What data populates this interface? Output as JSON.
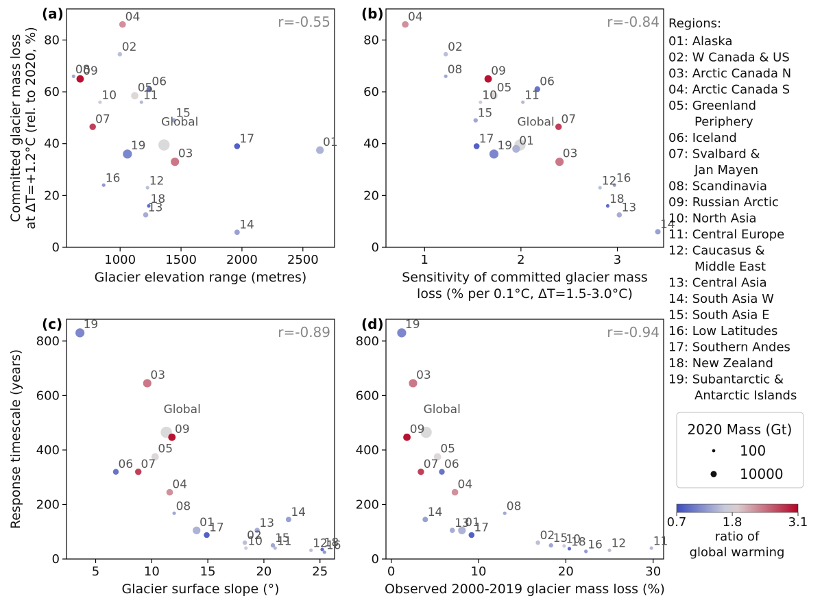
{
  "chart_data": [
    {
      "type": "scatter",
      "panel": "(a)",
      "corr": "r=-0.55",
      "xlabel": [
        "Glacier elevation range (metres)"
      ],
      "ylabel": [
        "Committed glacier mass loss",
        "at ΔT=+1.2°C (rel. to 2020, %)"
      ],
      "xlim": [
        560,
        2760
      ],
      "ylim": [
        0,
        92
      ],
      "xticks": [
        1000,
        1500,
        2000,
        2500
      ],
      "yticks": [
        0,
        20,
        40,
        60,
        80
      ],
      "points": [
        {
          "label": "01",
          "x": 2640,
          "y": 37.5
        },
        {
          "label": "02",
          "x": 998,
          "y": 74.5
        },
        {
          "label": "03",
          "x": 1450,
          "y": 33
        },
        {
          "label": "04",
          "x": 1020,
          "y": 86
        },
        {
          "label": "05",
          "x": 1120,
          "y": 58.5
        },
        {
          "label": "06",
          "x": 1240,
          "y": 61
        },
        {
          "label": "07",
          "x": 775,
          "y": 46.5
        },
        {
          "label": "08",
          "x": 618,
          "y": 66
        },
        {
          "label": "09",
          "x": 672,
          "y": 65
        },
        {
          "label": "10",
          "x": 835,
          "y": 56
        },
        {
          "label": "11",
          "x": 1175,
          "y": 56
        },
        {
          "label": "12",
          "x": 1225,
          "y": 23
        },
        {
          "label": "13",
          "x": 1210,
          "y": 12.5
        },
        {
          "label": "14",
          "x": 1960,
          "y": 5.8
        },
        {
          "label": "15",
          "x": 1440,
          "y": 49
        },
        {
          "label": "16",
          "x": 865,
          "y": 24
        },
        {
          "label": "17",
          "x": 1960,
          "y": 39
        },
        {
          "label": "18",
          "x": 1235,
          "y": 16
        },
        {
          "label": "19",
          "x": 1060,
          "y": 36
        },
        {
          "label": "Global",
          "x": 1360,
          "y": 39.5
        }
      ]
    },
    {
      "type": "scatter",
      "panel": "(b)",
      "corr": "r=-0.84",
      "xlabel": [
        "Sensitivity of committed glacier mass",
        "loss (% per 0.1°C, ΔT=1.5-3.0°C)"
      ],
      "ylabel": [],
      "xlim": [
        0.6,
        3.48
      ],
      "ylim": [
        0,
        92
      ],
      "xticks": [
        1,
        2,
        3
      ],
      "yticks": [
        0,
        20,
        40,
        60,
        80
      ],
      "points": [
        {
          "label": "01",
          "x": 1.95,
          "y": 38
        },
        {
          "label": "02",
          "x": 1.22,
          "y": 74.5
        },
        {
          "label": "03",
          "x": 2.4,
          "y": 33
        },
        {
          "label": "04",
          "x": 0.8,
          "y": 86
        },
        {
          "label": "05",
          "x": 1.72,
          "y": 58.5
        },
        {
          "label": "06",
          "x": 2.17,
          "y": 61
        },
        {
          "label": "07",
          "x": 2.39,
          "y": 46.5
        },
        {
          "label": "08",
          "x": 1.22,
          "y": 66
        },
        {
          "label": "09",
          "x": 1.66,
          "y": 65
        },
        {
          "label": "10",
          "x": 1.58,
          "y": 56
        },
        {
          "label": "11",
          "x": 2.02,
          "y": 56
        },
        {
          "label": "12",
          "x": 2.82,
          "y": 23
        },
        {
          "label": "13",
          "x": 3.02,
          "y": 12.5
        },
        {
          "label": "14",
          "x": 3.42,
          "y": 6
        },
        {
          "label": "15",
          "x": 1.53,
          "y": 49
        },
        {
          "label": "16",
          "x": 2.97,
          "y": 24
        },
        {
          "label": "17",
          "x": 1.54,
          "y": 39
        },
        {
          "label": "18",
          "x": 2.9,
          "y": 16
        },
        {
          "label": "19",
          "x": 1.72,
          "y": 36
        },
        {
          "label": "Global",
          "x": 1.99,
          "y": 39.5
        }
      ]
    },
    {
      "type": "scatter",
      "panel": "(c)",
      "corr": "r=-0.89",
      "xlabel": [
        "Glacier surface slope (°)"
      ],
      "ylabel": [
        "Response timescale (years)"
      ],
      "xlim": [
        2.4,
        26.3
      ],
      "ylim": [
        0,
        880
      ],
      "xticks": [
        5,
        10,
        15,
        20,
        25
      ],
      "yticks": [
        0,
        200,
        400,
        600,
        800
      ],
      "points": [
        {
          "label": "01",
          "x": 14,
          "y": 105
        },
        {
          "label": "02",
          "x": 18.3,
          "y": 60
        },
        {
          "label": "03",
          "x": 9.6,
          "y": 645
        },
        {
          "label": "04",
          "x": 11.6,
          "y": 245
        },
        {
          "label": "05",
          "x": 10.3,
          "y": 375
        },
        {
          "label": "06",
          "x": 6.8,
          "y": 320
        },
        {
          "label": "07",
          "x": 8.8,
          "y": 320
        },
        {
          "label": "08",
          "x": 12.0,
          "y": 168
        },
        {
          "label": "09",
          "x": 11.8,
          "y": 447
        },
        {
          "label": "10",
          "x": 18.4,
          "y": 40
        },
        {
          "label": "11",
          "x": 21.0,
          "y": 40
        },
        {
          "label": "12",
          "x": 24.2,
          "y": 32
        },
        {
          "label": "13",
          "x": 19.4,
          "y": 105
        },
        {
          "label": "14",
          "x": 22.2,
          "y": 145
        },
        {
          "label": "15",
          "x": 20.8,
          "y": 50
        },
        {
          "label": "16",
          "x": 25.4,
          "y": 25
        },
        {
          "label": "17",
          "x": 14.9,
          "y": 88
        },
        {
          "label": "18",
          "x": 25.2,
          "y": 35
        },
        {
          "label": "19",
          "x": 3.6,
          "y": 830
        },
        {
          "label": "Global",
          "x": 11.3,
          "y": 465
        }
      ]
    },
    {
      "type": "scatter",
      "panel": "(d)",
      "corr": "r=-0.94",
      "xlabel": [
        "Observed 2000-2019 glacier mass loss (%)"
      ],
      "ylabel": [],
      "xlim": [
        -0.6,
        31.2
      ],
      "ylim": [
        0,
        880
      ],
      "xticks": [
        0,
        10,
        20,
        30
      ],
      "yticks": [
        0,
        200,
        400,
        600,
        800
      ],
      "points": [
        {
          "label": "01",
          "x": 8.1,
          "y": 105
        },
        {
          "label": "02",
          "x": 16.8,
          "y": 60
        },
        {
          "label": "03",
          "x": 2.5,
          "y": 645
        },
        {
          "label": "04",
          "x": 7.3,
          "y": 245
        },
        {
          "label": "05",
          "x": 5.3,
          "y": 375
        },
        {
          "label": "06",
          "x": 5.8,
          "y": 320
        },
        {
          "label": "07",
          "x": 3.4,
          "y": 320
        },
        {
          "label": "08",
          "x": 13.0,
          "y": 168
        },
        {
          "label": "09",
          "x": 1.8,
          "y": 447
        },
        {
          "label": "10",
          "x": 19.8,
          "y": 48
        },
        {
          "label": "11",
          "x": 29.8,
          "y": 40
        },
        {
          "label": "12",
          "x": 25.0,
          "y": 32
        },
        {
          "label": "13",
          "x": 7.0,
          "y": 105
        },
        {
          "label": "14",
          "x": 3.9,
          "y": 145
        },
        {
          "label": "15",
          "x": 18.3,
          "y": 50
        },
        {
          "label": "16",
          "x": 22.3,
          "y": 28
        },
        {
          "label": "17",
          "x": 9.2,
          "y": 88
        },
        {
          "label": "18",
          "x": 20.4,
          "y": 38
        },
        {
          "label": "19",
          "x": 1.2,
          "y": 830
        },
        {
          "label": "Global",
          "x": 4.0,
          "y": 465
        }
      ]
    }
  ],
  "regions": {
    "title": "Regions:",
    "items": [
      {
        "code": "01",
        "name": "01: Alaska",
        "ratio": 1.45,
        "mass": 18000
      },
      {
        "code": "02",
        "name": "02: W Canada & US",
        "ratio": 1.55,
        "mass": 900
      },
      {
        "code": "03",
        "name": "03: Arctic Canada N",
        "ratio": 2.45,
        "mass": 28000
      },
      {
        "code": "04",
        "name": "04: Arctic Canada S",
        "ratio": 2.3,
        "mass": 8000
      },
      {
        "code": "05",
        "name": "05: Greenland",
        "name2": "Periphery",
        "ratio": 1.85,
        "mass": 13500
      },
      {
        "code": "06",
        "name": "06: Iceland",
        "ratio": 0.95,
        "mass": 3700
      },
      {
        "code": "07",
        "name": "07: Svalbard &",
        "name2": "Jan Mayen",
        "ratio": 2.8,
        "mass": 6900
      },
      {
        "code": "08",
        "name": "08: Scandinavia",
        "ratio": 1.35,
        "mass": 250
      },
      {
        "code": "09",
        "name": "09: Russian Arctic",
        "ratio": 3.1,
        "mass": 14500
      },
      {
        "code": "10",
        "name": "10: North Asia",
        "ratio": 1.65,
        "mass": 120
      },
      {
        "code": "11",
        "name": "11: Central Europe",
        "ratio": 1.5,
        "mass": 110
      },
      {
        "code": "12",
        "name": "12: Caucasus &",
        "name2": "Middle East",
        "ratio": 1.55,
        "mass": 100
      },
      {
        "code": "13",
        "name": "13: Central Asia",
        "ratio": 1.4,
        "mass": 2100
      },
      {
        "code": "14",
        "name": "14: South Asia W",
        "ratio": 1.3,
        "mass": 2700
      },
      {
        "code": "15",
        "name": "15: South Asia E",
        "ratio": 1.35,
        "mass": 800
      },
      {
        "code": "16",
        "name": "16: Low Latitudes",
        "ratio": 1.25,
        "mass": 60
      },
      {
        "code": "17",
        "name": "17: Southern Andes",
        "ratio": 0.8,
        "mass": 4200
      },
      {
        "code": "18",
        "name": "18: New Zealand",
        "ratio": 0.9,
        "mass": 60
      },
      {
        "code": "19",
        "name": "19: Subantarctic &",
        "name2": "Antarctic Islands",
        "ratio": 1.1,
        "mass": 45000
      },
      {
        "code": "Global",
        "ratio": null,
        "mass": 150000
      }
    ]
  },
  "size_legend": {
    "title": "2020 Mass (Gt)",
    "entries": [
      {
        "label": "100",
        "mass": 100
      },
      {
        "label": "10000",
        "mass": 10000
      }
    ]
  },
  "colorbar": {
    "min_label": "0.7",
    "mid_label": "1.8",
    "max_label": "3.1",
    "min": 0.7,
    "mid": 1.8,
    "max": 3.1,
    "label": [
      "ratio of",
      "global warming"
    ],
    "colors": {
      "low": "#3b4cc0",
      "mid": "#dddddd",
      "high": "#b40426"
    },
    "global_color": "#d4d4d4"
  }
}
